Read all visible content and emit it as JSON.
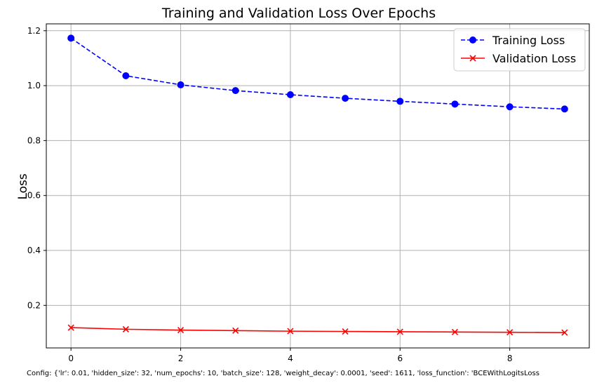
{
  "chart_data": {
    "type": "line",
    "title": "Training and Validation Loss Over Epochs",
    "xlabel": "",
    "ylabel": "Loss",
    "x": [
      0,
      1,
      2,
      3,
      4,
      5,
      6,
      7,
      8,
      9
    ],
    "xlim": [
      -0.45,
      9.45
    ],
    "ylim": [
      0.045,
      1.225
    ],
    "x_ticks": [
      0,
      2,
      4,
      6,
      8
    ],
    "x_tick_labels": [
      "0",
      "2",
      "4",
      "6",
      "8"
    ],
    "y_ticks": [
      0.2,
      0.4,
      0.6,
      0.8,
      1.0,
      1.2
    ],
    "y_tick_labels": [
      "0.2",
      "0.4",
      "0.6",
      "0.8",
      "1.0",
      "1.2"
    ],
    "grid": true,
    "legend_position": "top-right",
    "series": [
      {
        "name": "Training Loss",
        "values": [
          1.173,
          1.036,
          1.003,
          0.982,
          0.967,
          0.954,
          0.943,
          0.933,
          0.923,
          0.915
        ],
        "color": "#0000ff",
        "line_style": "dashed",
        "marker": "circle"
      },
      {
        "name": "Validation Loss",
        "values": [
          0.119,
          0.113,
          0.11,
          0.108,
          0.106,
          0.105,
          0.104,
          0.103,
          0.102,
          0.101
        ],
        "color": "#ff0000",
        "line_style": "solid",
        "marker": "x"
      }
    ],
    "footer": "Config: {'lr': 0.01, 'hidden_size': 32, 'num_epochs': 10, 'batch_size': 128, 'weight_decay': 0.0001, 'seed': 1611, 'loss_function': 'BCEWithLogitsLoss"
  }
}
